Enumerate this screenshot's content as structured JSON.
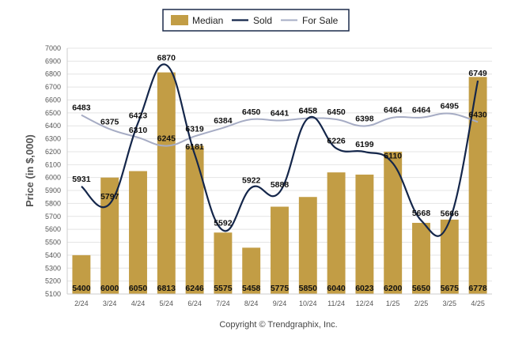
{
  "chart_data": {
    "type": "bar",
    "categories": [
      "2/24",
      "3/24",
      "4/24",
      "5/24",
      "6/24",
      "7/24",
      "8/24",
      "9/24",
      "10/24",
      "11/24",
      "12/24",
      "1/25",
      "2/25",
      "3/25",
      "4/25"
    ],
    "series": [
      {
        "name": "Median",
        "type": "bar",
        "color": "#c29d45",
        "values": [
          5400,
          6000,
          6050,
          6813,
          6246,
          5575,
          5458,
          5775,
          5850,
          6040,
          6023,
          6200,
          5650,
          5675,
          6778
        ]
      },
      {
        "name": "Sold",
        "type": "line",
        "color": "#14264a",
        "values": [
          5931,
          5797,
          6423,
          6870,
          6181,
          5592,
          5922,
          5888,
          6458,
          6226,
          6199,
          6110,
          5668,
          5666,
          6749
        ]
      },
      {
        "name": "For Sale",
        "type": "line",
        "color": "#a6acc4",
        "values": [
          6483,
          6375,
          6310,
          6245,
          6319,
          6384,
          6450,
          6441,
          6458,
          6450,
          6398,
          6464,
          6464,
          6495,
          6430
        ]
      }
    ],
    "ylabel": "Price (in $,000)",
    "xlabel": "",
    "ylim": [
      5100,
      7000
    ],
    "yticks": [
      5100,
      5200,
      5300,
      5400,
      5500,
      5600,
      5700,
      5800,
      5900,
      6000,
      6100,
      6200,
      6300,
      6400,
      6500,
      6600,
      6700,
      6800,
      6900,
      7000
    ],
    "grid": true,
    "legend": "top-center",
    "copyright": "Copyright © Trendgraphix, Inc."
  }
}
